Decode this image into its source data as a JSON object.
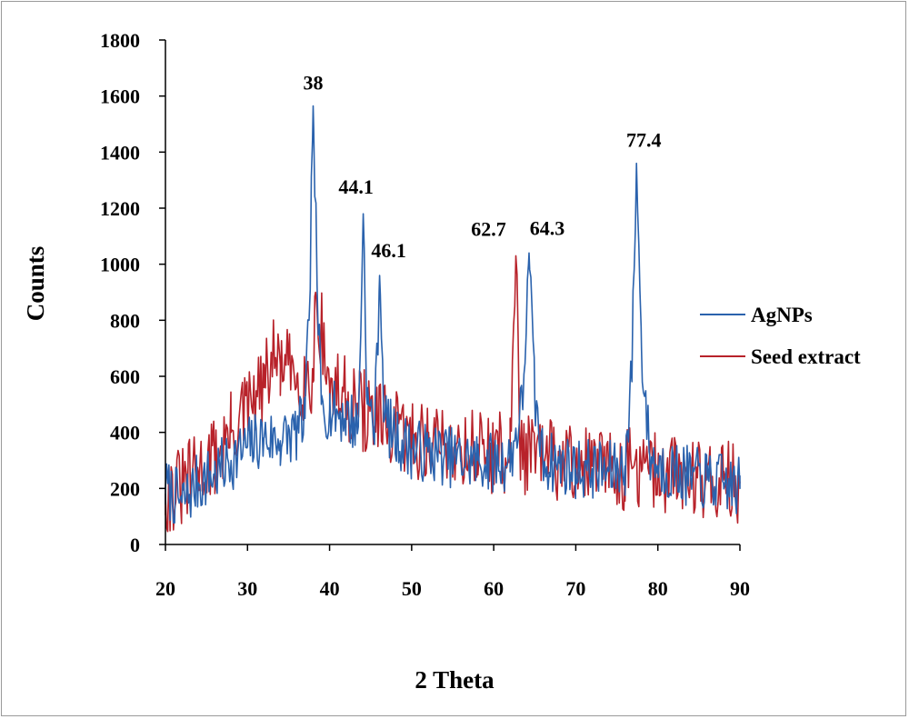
{
  "chart_data": {
    "type": "line",
    "title": "",
    "xlabel": "2 Theta",
    "ylabel": "Counts",
    "xlim": [
      20,
      90
    ],
    "ylim": [
      0,
      1800
    ],
    "xticks": [
      20,
      30,
      40,
      50,
      60,
      70,
      80,
      90
    ],
    "yticks": [
      0,
      200,
      400,
      600,
      800,
      1000,
      1200,
      1400,
      1600,
      1800
    ],
    "grid": false,
    "legend_position": "right",
    "series": [
      {
        "name": "AgNPs",
        "color": "#2a62ad",
        "x": [
          20,
          22,
          24,
          26,
          28,
          30,
          32,
          34,
          36,
          37,
          37.5,
          38,
          38.5,
          39,
          40,
          42,
          43.5,
          44.1,
          44.6,
          45.5,
          46.1,
          46.7,
          48,
          50,
          52,
          54,
          56,
          58,
          60,
          62,
          63.5,
          64.3,
          65,
          66,
          68,
          70,
          72,
          74,
          76,
          76.8,
          77.4,
          78,
          79,
          80,
          82,
          84,
          86,
          88,
          90
        ],
        "y": [
          200,
          150,
          220,
          250,
          300,
          350,
          380,
          370,
          400,
          450,
          800,
          1565,
          900,
          500,
          480,
          460,
          420,
          1180,
          500,
          420,
          960,
          450,
          380,
          340,
          330,
          320,
          300,
          300,
          290,
          300,
          500,
          1040,
          520,
          300,
          290,
          270,
          270,
          260,
          280,
          600,
          1360,
          700,
          320,
          280,
          260,
          240,
          230,
          220,
          200
        ]
      },
      {
        "name": "Seed extract",
        "color": "#b8222a",
        "x": [
          20,
          22,
          24,
          26,
          28,
          30,
          32,
          33,
          34,
          36,
          38,
          38.3,
          40,
          42,
          44,
          46,
          48,
          50,
          52,
          54,
          56,
          58,
          60,
          62,
          62.7,
          63.3,
          64,
          66,
          68,
          70,
          72,
          74,
          76,
          78,
          80,
          82,
          84,
          86,
          88,
          90
        ],
        "y": [
          180,
          200,
          260,
          310,
          400,
          480,
          560,
          660,
          640,
          600,
          580,
          900,
          560,
          520,
          480,
          430,
          400,
          380,
          370,
          360,
          350,
          340,
          330,
          320,
          1030,
          330,
          320,
          310,
          300,
          290,
          280,
          270,
          270,
          260,
          260,
          250,
          250,
          240,
          230,
          220
        ]
      }
    ],
    "annotations": [
      {
        "text": "38",
        "x": 38,
        "y": 1565
      },
      {
        "text": "44.1",
        "x": 44.1,
        "y": 1180
      },
      {
        "text": "46.1",
        "x": 46.1,
        "y": 960
      },
      {
        "text": "62.7",
        "x": 62.7,
        "y": 1030
      },
      {
        "text": "64.3",
        "x": 64.3,
        "y": 1040
      },
      {
        "text": "77.4",
        "x": 77.4,
        "y": 1360
      }
    ]
  }
}
